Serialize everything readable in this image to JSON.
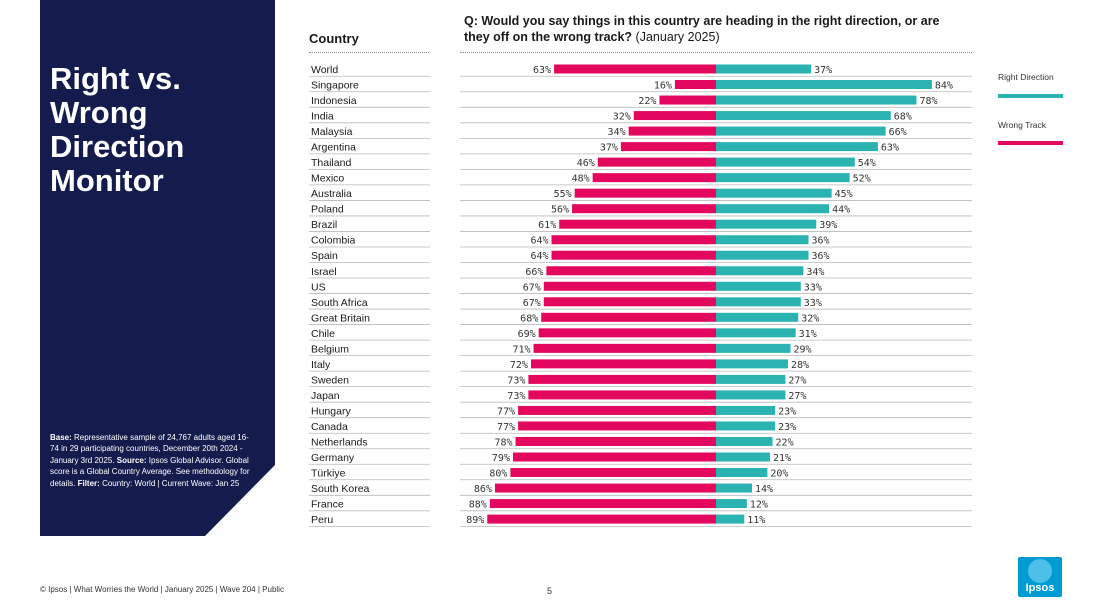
{
  "panel": {
    "title": "Right vs. Wrong Direction Monitor",
    "base_label": "Base:",
    "base_text": "Representative sample of 24,767 adults aged 16-74 in 29 participating countries, December 20th 2024 - January 3rd 2025.",
    "source_label": "Source:",
    "source_text": "Ipsos Global Advisor. Global score is a Global Country Average. See methodology for details.",
    "filter_label": "Filter:",
    "filter_text": "Country: World | Current Wave: Jan 25"
  },
  "header": {
    "country_label": "Country",
    "question": "Q: Would you say things in this country are heading in the right direction, or are they off on the wrong track?",
    "question_date": "(January 2025)"
  },
  "legend": {
    "right_label": "Right Direction",
    "wrong_label": "Wrong Track"
  },
  "footer": {
    "text": "© Ipsos | What Worries the World | January 2025 | Wave 204 | Public",
    "page": "5"
  },
  "logo": {
    "text": "Ipsos"
  },
  "colors": {
    "panel": "#141b4d",
    "right": "#2ab3b1",
    "wrong": "#e3075e",
    "logo": "#009bd2"
  },
  "chart_data": {
    "type": "bar",
    "orientation": "horizontal-diverging",
    "unit": "%",
    "categories": [
      "World",
      "Singapore",
      "Indonesia",
      "India",
      "Malaysia",
      "Argentina",
      "Thailand",
      "Mexico",
      "Australia",
      "Poland",
      "Brazil",
      "Colombia",
      "Spain",
      "Israel",
      "US",
      "South Africa",
      "Great Britain",
      "Chile",
      "Belgium",
      "Italy",
      "Sweden",
      "Japan",
      "Hungary",
      "Canada",
      "Netherlands",
      "Germany",
      "Türkiye",
      "South Korea",
      "France",
      "Peru"
    ],
    "series": [
      {
        "name": "Wrong Track",
        "color": "#e3075e",
        "values": [
          63,
          16,
          22,
          32,
          34,
          37,
          46,
          48,
          55,
          56,
          61,
          64,
          64,
          66,
          67,
          67,
          68,
          69,
          71,
          72,
          73,
          73,
          77,
          77,
          78,
          79,
          80,
          86,
          88,
          89
        ]
      },
      {
        "name": "Right Direction",
        "color": "#2ab3b1",
        "values": [
          37,
          84,
          78,
          68,
          66,
          63,
          54,
          52,
          45,
          44,
          39,
          36,
          36,
          34,
          33,
          33,
          32,
          31,
          29,
          28,
          27,
          27,
          23,
          23,
          22,
          21,
          20,
          14,
          12,
          11
        ]
      }
    ],
    "legend_position": "right"
  }
}
